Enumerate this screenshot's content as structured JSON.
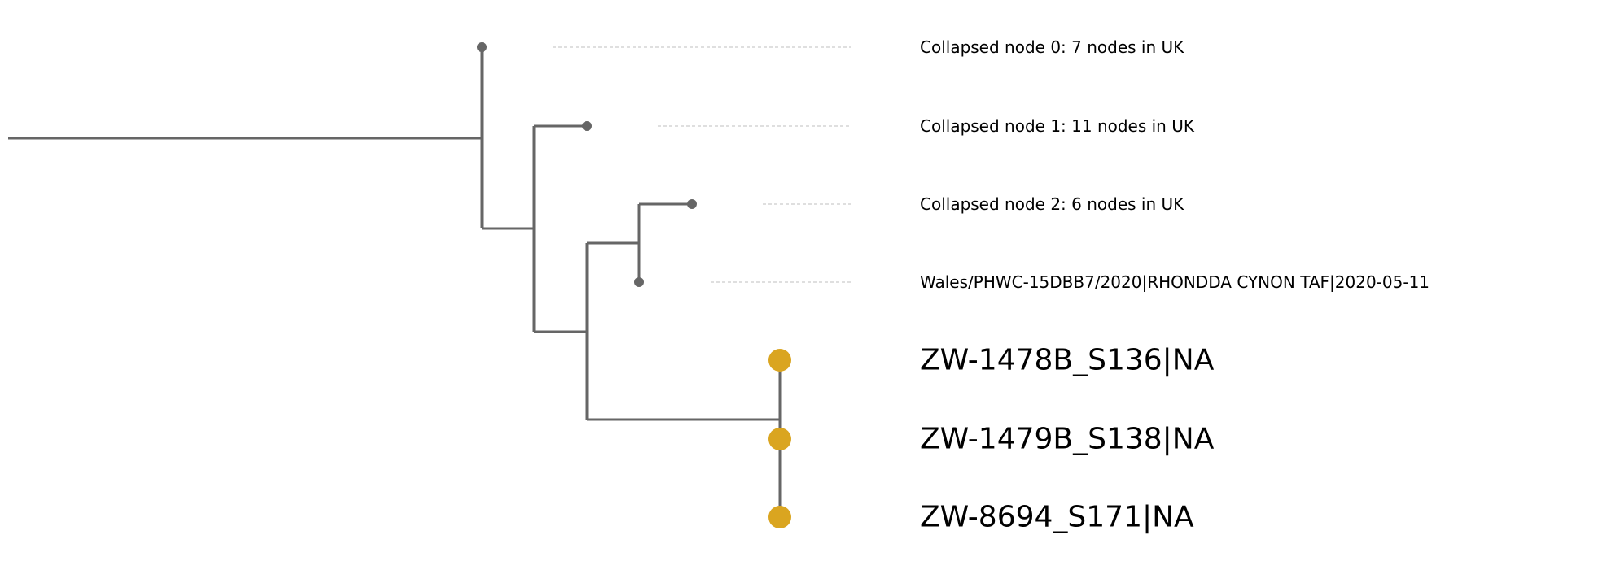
{
  "colors": {
    "branch": "#666666",
    "collapsed_node": "#666666",
    "highlight_tip": "#DAA520",
    "guide_line": "#cccccc",
    "label": "#000000"
  },
  "tips": [
    {
      "id": "collapsed0",
      "label": "Collapsed node 0: 7 nodes in UK",
      "kind": "collapsed"
    },
    {
      "id": "collapsed1",
      "label": "Collapsed node 1: 11 nodes in UK",
      "kind": "collapsed"
    },
    {
      "id": "collapsed2",
      "label": "Collapsed node 2: 6 nodes in UK",
      "kind": "collapsed"
    },
    {
      "id": "wales",
      "label": "Wales/PHWC-15DBB7/2020|RHONDDA CYNON TAF|2020-05-11",
      "kind": "reference"
    },
    {
      "id": "zw1478b",
      "label": "ZW-1478B_S136|NA",
      "kind": "query"
    },
    {
      "id": "zw1479b",
      "label": "ZW-1479B_S138|NA",
      "kind": "query"
    },
    {
      "id": "zw8694",
      "label": "ZW-8694_S171|NA",
      "kind": "query"
    }
  ]
}
